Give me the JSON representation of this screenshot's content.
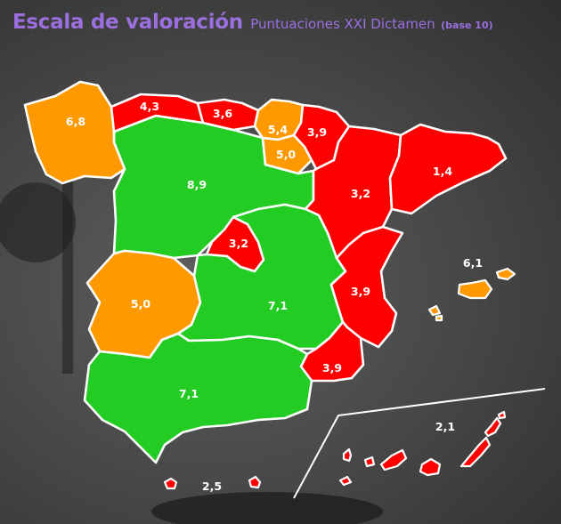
{
  "header": {
    "title": "Escala de valoración",
    "subtitle": "Puntuaciones XXI Dictamen",
    "base_note": "(base 10)"
  },
  "legend_colors": {
    "high": "#22cc22",
    "medium": "#ff9900",
    "low": "#ff0000",
    "border": "#ffffff",
    "title": "#9b6fe0"
  },
  "regions": [
    {
      "id": "galicia",
      "score": "6,8",
      "color": "#ff9900"
    },
    {
      "id": "asturias",
      "score": "4,3",
      "color": "#ff0000"
    },
    {
      "id": "cantabria",
      "score": "3,6",
      "color": "#ff0000"
    },
    {
      "id": "pais-vasco",
      "score": "5,4",
      "color": "#ff9900"
    },
    {
      "id": "navarra",
      "score": "3,9",
      "color": "#ff0000"
    },
    {
      "id": "la-rioja",
      "score": "5,0",
      "color": "#ff9900"
    },
    {
      "id": "aragon",
      "score": "3,2",
      "color": "#ff0000"
    },
    {
      "id": "cataluna",
      "score": "1,4",
      "color": "#ff0000"
    },
    {
      "id": "castilla-y-leon",
      "score": "8,9",
      "color": "#22cc22"
    },
    {
      "id": "madrid",
      "score": "3,2",
      "color": "#ff0000"
    },
    {
      "id": "castilla-la-mancha",
      "score": "7,1",
      "color": "#22cc22"
    },
    {
      "id": "extremadura",
      "score": "5,0",
      "color": "#ff9900"
    },
    {
      "id": "comunidad-valenciana",
      "score": "3,9",
      "color": "#ff0000"
    },
    {
      "id": "murcia",
      "score": "3,9",
      "color": "#ff0000"
    },
    {
      "id": "andalucia",
      "score": "7,1",
      "color": "#22cc22"
    },
    {
      "id": "baleares",
      "score": "6,1",
      "color": "#ff9900"
    },
    {
      "id": "canarias",
      "score": "2,1",
      "color": "#ff0000"
    },
    {
      "id": "ceuta-melilla",
      "score": "2,5",
      "color": "#ff0000"
    }
  ]
}
